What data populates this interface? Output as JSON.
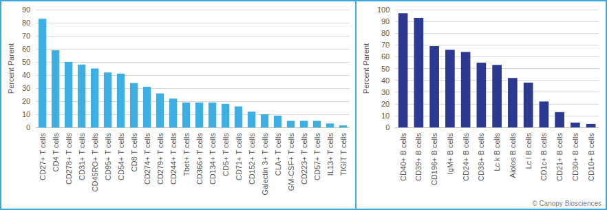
{
  "chart_data": [
    {
      "type": "bar",
      "y_label": "Percent Parent",
      "categories": [
        "CD27+ T cells",
        "CD4 T cells",
        "CD278+ T cells",
        "CD31+ T cells",
        "CD45RO+ T cells",
        "CD95+ T cells",
        "CD54+ T cells",
        "CD8 T cells",
        "CD274+ T cells",
        "CD279+ T cells",
        "CD244+ T cells",
        "Tbet+ T cells",
        "CD366+ T cells",
        "CD134+ T cells",
        "CD5+ T cells",
        "CD71+ T cells",
        "CD152+ T cells",
        "Galectin 3+ T cells",
        "CLA+ T cells",
        "GM-CSF+ T cells",
        "CD223+ T cells",
        "CD57+ T cells",
        "IL13+ T cells",
        "TIGIT T cells"
      ],
      "values": [
        83,
        59,
        50,
        48,
        45,
        42,
        41,
        34,
        31,
        26,
        22,
        19,
        19,
        19,
        18,
        16,
        12,
        10,
        9,
        5,
        5,
        5,
        3,
        1.5
      ],
      "color": "#3eafe3",
      "ylim": [
        0,
        90
      ],
      "yticks": [
        0,
        10,
        20,
        30,
        40,
        50,
        60,
        70,
        80,
        90
      ],
      "grid": true
    },
    {
      "type": "bar",
      "y_label": "Percent Parent",
      "categories": [
        "CD40+ B cells",
        "CD39+ B cells",
        "CD196+ B cells",
        "IgM+ B cells",
        "CD24+ B cells",
        "CD38+ B cells",
        "Lc k B cells",
        "Aiolos B cells",
        "Lc l B cells",
        "CD1c+ B cells",
        "CD21+ B cells",
        "CD30+ B cells",
        "CD10+ B cells"
      ],
      "values": [
        97,
        93,
        69,
        66,
        64,
        55,
        53,
        42,
        38,
        22,
        13,
        4,
        3
      ],
      "color": "#2b3990",
      "ylim": [
        0,
        100
      ],
      "yticks": [
        0,
        10,
        20,
        30,
        40,
        50,
        60,
        70,
        80,
        90,
        100
      ],
      "grid": true,
      "annotations": [
        "© Canopy Biosciences"
      ]
    }
  ]
}
